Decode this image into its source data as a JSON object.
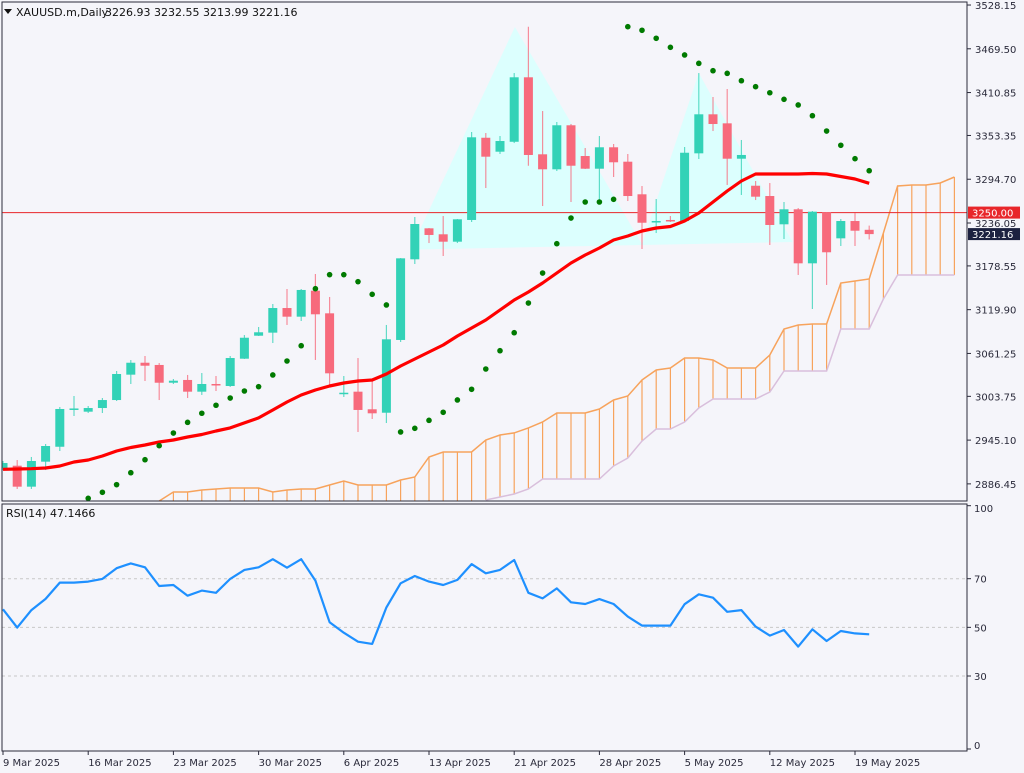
{
  "header": {
    "symbol_timeframe": "XAUUSD.m,Daily",
    "ohlc_readout": "3226.93 3232.55 3213.99 3221.16",
    "collapse_icon": "triangle-down-icon"
  },
  "rsi_header": {
    "label": "RSI(14) 47.1466"
  },
  "colors": {
    "background": "#f5f5fa",
    "bull": "#33d2b7",
    "bear": "#f76a7c",
    "moving_average": "#ff0000",
    "parabolic_sar": "#007a00",
    "cloud_span_a": "#f7a35c",
    "cloud_span_b": "#d9bfdc",
    "pattern_fill": "#dcfffe",
    "rsi_line": "#1e90ff",
    "horizontal_line": "#e8262a",
    "current_price_tag": "#1c2140",
    "axis": "#2a2a3a"
  },
  "chart_data": [
    {
      "type": "candlestick",
      "panel": "price",
      "ylim": [
        2863.5,
        3532.2
      ],
      "x_tick_labels": [
        "9 Mar 2025",
        "16 Mar 2025",
        "23 Mar 2025",
        "30 Mar 2025",
        "6 Apr 2025",
        "13 Apr 2025",
        "21 Apr 2025",
        "28 Apr 2025",
        "5 May 2025",
        "12 May 2025",
        "19 May 2025"
      ],
      "bars_per_x_tick": 6,
      "y_tick_labels": [
        "3528.15",
        "3469.50",
        "3410.85",
        "3353.35",
        "3294.70",
        "3236.05",
        "3178.55",
        "3119.90",
        "3061.25",
        "3003.75",
        "2945.10",
        "2886.45"
      ],
      "price_markers": [
        {
          "label": "3250.00",
          "value": 3250.0,
          "kind": "horizontal-line"
        },
        {
          "label": "3221.16",
          "value": 3221.16,
          "kind": "current-price"
        }
      ],
      "candles_ohlc": [
        [
          2907.7,
          2917.1,
          2905.0,
          2914.4
        ],
        [
          2910.8,
          2918.4,
          2879.6,
          2882.7
        ],
        [
          2882.7,
          2922.5,
          2879.6,
          2917.1
        ],
        [
          2916.2,
          2939.9,
          2905.0,
          2937.2
        ],
        [
          2936.2,
          2989.5,
          2930.5,
          2986.8
        ],
        [
          2985.5,
          3004.2,
          2977.4,
          2987.5
        ],
        [
          2983.2,
          2990.8,
          2981.4,
          2988.1
        ],
        [
          2988.1,
          3001.5,
          2981.4,
          2998.8
        ],
        [
          2998.8,
          3037.7,
          2997.5,
          3033.7
        ],
        [
          3032.8,
          3052.4,
          3020.3,
          3048.8
        ],
        [
          3048.8,
          3057.8,
          3024.3,
          3044.8
        ],
        [
          3045.8,
          3048.4,
          2998.8,
          3022.0
        ],
        [
          3022.0,
          3027.0,
          3020.3,
          3024.7
        ],
        [
          3025.7,
          3032.4,
          3001.5,
          3010.0
        ],
        [
          3010.0,
          3035.0,
          3005.6,
          3020.3
        ],
        [
          3020.3,
          3031.0,
          3010.9,
          3018.3
        ],
        [
          3017.6,
          3057.8,
          3016.3,
          3055.1
        ],
        [
          3054.2,
          3085.9,
          3053.8,
          3082.3
        ],
        [
          3085.0,
          3096.7,
          3084.6,
          3089.6
        ],
        [
          3089.1,
          3127.5,
          3075.2,
          3122.1
        ],
        [
          3122.1,
          3147.6,
          3099.4,
          3110.5
        ],
        [
          3110.5,
          3147.6,
          3104.7,
          3146.3
        ],
        [
          3145.3,
          3167.7,
          3052.5,
          3113.7
        ],
        [
          3115.0,
          3136.9,
          3017.6,
          3034.6
        ],
        [
          3007.3,
          3031.0,
          3002.9,
          3008.6
        ],
        [
          3010.0,
          3055.1,
          2956.0,
          2985.5
        ],
        [
          2986.4,
          3025.7,
          2973.4,
          2981.0
        ],
        [
          2981.8,
          3099.4,
          2968.0,
          3080.2
        ],
        [
          3079.3,
          3189.1,
          3076.6,
          3188.7
        ],
        [
          3187.4,
          3244.1,
          3181.1,
          3234.7
        ],
        [
          3228.9,
          3229.3,
          3209.2,
          3220.0
        ],
        [
          3220.9,
          3245.4,
          3191.8,
          3211.0
        ],
        [
          3211.0,
          3241.4,
          3209.2,
          3241.0
        ],
        [
          3240.1,
          3358.0,
          3237.4,
          3350.9
        ],
        [
          3350.3,
          3356.6,
          3282.9,
          3324.9
        ],
        [
          3331.6,
          3352.6,
          3328.5,
          3345.9
        ],
        [
          3344.9,
          3437.0,
          3343.2,
          3431.3
        ],
        [
          3431.3,
          3499.1,
          3312.8,
          3327.2
        ],
        [
          3328.1,
          3386.1,
          3258.8,
          3308.0
        ],
        [
          3308.0,
          3371.4,
          3305.7,
          3367.0
        ],
        [
          3367.0,
          3368.7,
          3264.2,
          3312.8
        ],
        [
          3325.8,
          3336.5,
          3308.4,
          3308.8
        ],
        [
          3308.8,
          3352.6,
          3264.2,
          3337.5
        ],
        [
          3337.5,
          3341.9,
          3297.7,
          3317.4
        ],
        [
          3318.2,
          3328.5,
          3265.5,
          3272.2
        ],
        [
          3274.5,
          3285.6,
          3201.2,
          3236.4
        ],
        [
          3237.4,
          3268.2,
          3222.6,
          3238.7
        ],
        [
          3240.1,
          3245.4,
          3237.4,
          3238.7
        ],
        [
          3238.7,
          3337.9,
          3238.7,
          3330.2
        ],
        [
          3329.4,
          3437.0,
          3321.8,
          3381.7
        ],
        [
          3381.7,
          3404.9,
          3359.3,
          3368.7
        ],
        [
          3369.6,
          3415.6,
          3287.0,
          3322.2
        ],
        [
          3322.2,
          3347.3,
          3273.6,
          3327.2
        ],
        [
          3286.0,
          3292.3,
          3266.8,
          3271.3
        ],
        [
          3272.2,
          3289.6,
          3206.6,
          3233.4
        ],
        [
          3234.3,
          3264.2,
          3214.6,
          3254.4
        ],
        [
          3254.4,
          3256.1,
          3166.4,
          3182.0
        ],
        [
          3182.0,
          3252.1,
          3120.8,
          3251.2
        ],
        [
          3250.4,
          3250.8,
          3153.0,
          3196.8
        ],
        [
          3215.5,
          3241.4,
          3205.2,
          3238.7
        ],
        [
          3238.7,
          3249.4,
          3205.2,
          3225.7
        ],
        [
          3226.93,
          3232.55,
          3213.99,
          3221.16
        ]
      ],
      "moving_average": [
        2906.0,
        2906.4,
        2906.8,
        2907.7,
        2910.4,
        2915.8,
        2918.5,
        2923.8,
        2930.5,
        2935.2,
        2938.6,
        2942.6,
        2945.3,
        2949.3,
        2952.6,
        2957.3,
        2961.4,
        2968.1,
        2974.8,
        2985.5,
        2996.2,
        3005.6,
        3012.3,
        3017.6,
        3021.6,
        3024.3,
        3025.7,
        3033.7,
        3044.4,
        3053.8,
        3063.2,
        3072.5,
        3084.6,
        3095.3,
        3106.1,
        3119.5,
        3132.9,
        3143.6,
        3155.6,
        3169.0,
        3182.5,
        3193.2,
        3202.5,
        3213.3,
        3218.6,
        3225.3,
        3229.3,
        3231.3,
        3238.7,
        3249.4,
        3264.2,
        3278.9,
        3292.3,
        3301.7,
        3301.7,
        3301.7,
        3301.7,
        3302.4,
        3301.7,
        3298.4,
        3295.0,
        3289.2
      ],
      "parabolic_sar": [
        null,
        null,
        null,
        null,
        null,
        null,
        2867.1,
        2875.2,
        2885.4,
        2901.4,
        2918.8,
        2937.6,
        2954.6,
        2968.9,
        2981.1,
        2991.8,
        3001.5,
        3010.9,
        3016.7,
        3032.4,
        3051.1,
        3071.6,
        3148.0,
        3166.8,
        3166.8,
        3157.4,
        3140.5,
        3126.2,
        2956.0,
        2960.9,
        2971.6,
        2982.4,
        2998.9,
        3013.2,
        3040.4,
        3064.9,
        3089.0,
        3128.8,
        3169.0,
        3208.3,
        3242.7,
        3264.2,
        3264.2,
        3267.8,
        3499.1,
        3494.3,
        3483.6,
        3471.5,
        3461.2,
        3450.0,
        3440.1,
        3436.6,
        3426.7,
        3418.7,
        3410.6,
        3401.8,
        3394.2,
        3379.8,
        3359.3,
        3340.2,
        3322.2,
        3306.1
      ],
      "ichimoku_span_a": [
        null,
        null,
        null,
        null,
        null,
        null,
        null,
        null,
        null,
        null,
        null,
        2863.5,
        2875.6,
        2875.6,
        2878.3,
        2879.6,
        2880.9,
        2880.9,
        2880.9,
        2875.6,
        2878.3,
        2879.6,
        2879.6,
        2885.0,
        2890.3,
        2885.0,
        2885.0,
        2885.0,
        2891.7,
        2895.7,
        2922.5,
        2929.2,
        2929.2,
        2929.2,
        2945.3,
        2952.0,
        2954.7,
        2961.4,
        2969.4,
        2981.4,
        2981.4,
        2981.4,
        2986.8,
        2998.9,
        3004.2,
        3025.7,
        3039.1,
        3041.7,
        3055.1,
        3055.1,
        3052.5,
        3041.7,
        3041.7,
        3041.7,
        3059.2,
        3094.0,
        3099.4,
        3100.7,
        3100.7,
        3155.6,
        3158.3,
        3161.0,
        3222.6,
        3285.6,
        3287.0,
        3287.0,
        3289.6,
        3297.7
      ],
      "ichimoku_span_b": [
        null,
        null,
        null,
        null,
        null,
        null,
        null,
        null,
        null,
        null,
        null,
        null,
        null,
        null,
        null,
        null,
        null,
        null,
        null,
        null,
        null,
        null,
        null,
        null,
        null,
        null,
        null,
        null,
        null,
        null,
        null,
        null,
        null,
        null,
        2864.9,
        2868.9,
        2872.9,
        2879.6,
        2893.0,
        2893.0,
        2893.0,
        2893.0,
        2893.0,
        2910.4,
        2921.1,
        2943.9,
        2960.0,
        2960.0,
        2969.4,
        2988.1,
        3000.2,
        3000.2,
        3000.2,
        3000.2,
        3009.6,
        3037.7,
        3037.7,
        3037.7,
        3037.7,
        3094.0,
        3094.0,
        3094.0,
        3134.2,
        3166.4,
        3166.4,
        3166.4,
        3166.4,
        3166.4
      ],
      "pattern_shape_bar_price": [
        [
          28.7,
          3200.4
        ],
        [
          36.05,
          3498.7
        ],
        [
          45.0,
          3207.8
        ],
        [
          49.0,
          3437.0
        ],
        [
          55.6,
          3210.5
        ]
      ]
    },
    {
      "type": "line",
      "panel": "rsi",
      "name": "RSI(14)",
      "ylim": [
        0,
        100
      ],
      "y_tick_labels": [
        "100",
        "70",
        "50",
        "30",
        "0"
      ],
      "levels": [
        70,
        50,
        30
      ],
      "values": [
        57.4,
        49.9,
        57.1,
        61.7,
        68.4,
        68.4,
        68.8,
        69.9,
        74.3,
        76.3,
        74.7,
        67.0,
        67.4,
        63.0,
        65.1,
        64.2,
        69.9,
        73.6,
        74.7,
        78.0,
        74.5,
        78.0,
        69.2,
        52.1,
        47.8,
        44.1,
        43.2,
        58.2,
        68.1,
        71.1,
        68.8,
        67.4,
        69.5,
        76.0,
        72.2,
        73.6,
        77.7,
        64.2,
        61.9,
        66.0,
        60.3,
        59.6,
        61.6,
        59.6,
        54.4,
        50.7,
        50.7,
        50.7,
        59.5,
        63.6,
        62.2,
        56.4,
        57.1,
        50.3,
        46.6,
        48.9,
        42.1,
        49.2,
        44.4,
        48.5,
        47.5,
        47.1466
      ]
    }
  ]
}
